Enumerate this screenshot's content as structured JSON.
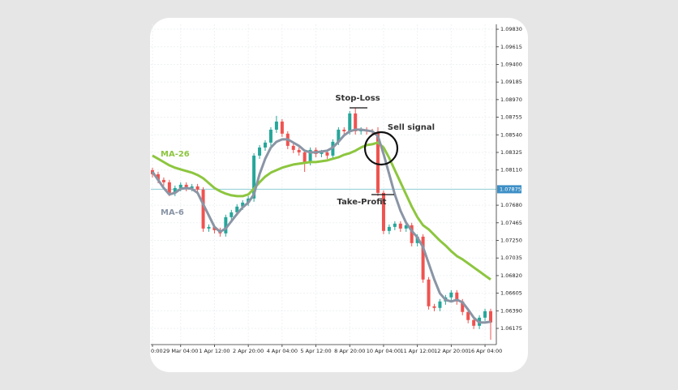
{
  "chart_data": {
    "type": "candlestick",
    "categories": [
      "0:00",
      null,
      null,
      null,
      null,
      "29 Mar 04:00",
      null,
      null,
      null,
      null,
      null,
      "1 Apr 12:00",
      null,
      null,
      null,
      null,
      null,
      "2 Apr 20:00",
      null,
      null,
      null,
      null,
      null,
      "4 Apr 04:00",
      null,
      null,
      null,
      null,
      null,
      "5 Apr 12:00",
      null,
      null,
      null,
      null,
      null,
      "8 Apr 20:00",
      null,
      null,
      null,
      null,
      null,
      "10 Apr 04:00",
      null,
      null,
      null,
      null,
      null,
      "11 Apr 12:00",
      null,
      null,
      null,
      null,
      null,
      "12 Apr 20:00",
      null,
      null,
      null,
      null,
      null,
      "16 Apr 04:00",
      null
    ],
    "open": [
      1.08108,
      1.08059,
      1.07989,
      1.0796,
      1.07831,
      1.0789,
      1.0793,
      1.0789,
      1.0791,
      1.0787,
      1.07395,
      1.07415,
      1.07375,
      1.07336,
      1.07534,
      1.07593,
      1.07663,
      1.07712,
      1.07762,
      1.08286,
      1.08385,
      1.08445,
      1.08603,
      1.08702,
      1.08554,
      1.08405,
      1.08356,
      1.08326,
      1.08207,
      1.08356,
      1.08306,
      1.08326,
      1.08286,
      1.08455,
      1.08603,
      1.08583,
      1.08801,
      1.08583,
      1.08603,
      1.08583,
      1.08573,
      1.07831,
      1.07366,
      1.07415,
      1.07455,
      1.07395,
      1.07435,
      1.07217,
      1.07296,
      1.06772,
      1.06445,
      1.06425,
      1.06504,
      1.06554,
      1.06613,
      1.06504,
      1.06376,
      1.06277,
      1.06207,
      1.06306,
      1.06385
    ],
    "high": [
      1.08138,
      1.08089,
      1.08019,
      1.0799,
      1.0792,
      1.0796,
      1.0796,
      1.0794,
      1.0794,
      1.079,
      1.07445,
      1.07445,
      1.07405,
      1.07564,
      1.07623,
      1.07693,
      1.07742,
      1.07792,
      1.08316,
      1.08415,
      1.08475,
      1.08633,
      1.08772,
      1.08732,
      1.08584,
      1.08435,
      1.08386,
      1.08356,
      1.08386,
      1.08386,
      1.08356,
      1.08356,
      1.08485,
      1.08633,
      1.08633,
      1.08831,
      1.0887,
      1.08633,
      1.08633,
      1.08613,
      1.08633,
      1.07861,
      1.07445,
      1.07485,
      1.07485,
      1.07465,
      1.07465,
      1.07326,
      1.07326,
      1.06802,
      1.06475,
      1.06534,
      1.06584,
      1.06643,
      1.06643,
      1.06534,
      1.06406,
      1.06307,
      1.06336,
      1.06415,
      1.06415
    ],
    "low": [
      1.08019,
      1.07949,
      1.0792,
      1.07791,
      1.07791,
      1.0785,
      1.0785,
      1.0785,
      1.0783,
      1.07355,
      1.07355,
      1.07335,
      1.07296,
      1.07296,
      1.07494,
      1.07553,
      1.07623,
      1.07672,
      1.07722,
      1.08246,
      1.08345,
      1.08405,
      1.08563,
      1.08514,
      1.08365,
      1.08316,
      1.08286,
      1.08087,
      1.08167,
      1.08266,
      1.08266,
      1.08246,
      1.08246,
      1.08415,
      1.08543,
      1.08543,
      1.08543,
      1.08543,
      1.08543,
      1.08533,
      1.07791,
      1.07326,
      1.07326,
      1.07375,
      1.07355,
      1.07355,
      1.07177,
      1.07177,
      1.06732,
      1.06405,
      1.06385,
      1.06385,
      1.06464,
      1.06514,
      1.06464,
      1.06336,
      1.06237,
      1.06167,
      1.06167,
      1.06266,
      1.06037
    ],
    "close": [
      1.08059,
      1.07989,
      1.0796,
      1.07831,
      1.0789,
      1.0793,
      1.0789,
      1.0791,
      1.0787,
      1.07395,
      1.07415,
      1.07375,
      1.07336,
      1.07534,
      1.07593,
      1.07663,
      1.07712,
      1.07762,
      1.08286,
      1.08385,
      1.08445,
      1.08603,
      1.08702,
      1.08554,
      1.08405,
      1.08356,
      1.08326,
      1.08207,
      1.08356,
      1.08306,
      1.08326,
      1.08286,
      1.08455,
      1.08603,
      1.08583,
      1.08801,
      1.08583,
      1.08603,
      1.08583,
      1.08573,
      1.07831,
      1.07366,
      1.07415,
      1.07455,
      1.07395,
      1.07435,
      1.07217,
      1.07296,
      1.06772,
      1.06445,
      1.06425,
      1.06504,
      1.06554,
      1.06613,
      1.06504,
      1.06376,
      1.06277,
      1.06207,
      1.06306,
      1.06385,
      1.06247
    ],
    "up_color": "#26a69a",
    "down_color": "#ef5350",
    "series": [
      {
        "name": "MA-26",
        "color": "#8dc63f",
        "values": [
          1.08286,
          1.08247,
          1.08207,
          1.08167,
          1.08138,
          1.08118,
          1.08098,
          1.08078,
          1.08049,
          1.08009,
          1.0795,
          1.0789,
          1.07851,
          1.07821,
          1.07801,
          1.07791,
          1.07791,
          1.07811,
          1.0788,
          1.0796,
          1.08029,
          1.08078,
          1.08108,
          1.08138,
          1.08158,
          1.08177,
          1.08187,
          1.08197,
          1.08207,
          1.08207,
          1.08217,
          1.08227,
          1.08247,
          1.08266,
          1.08296,
          1.08316,
          1.08346,
          1.08385,
          1.08415,
          1.08425,
          1.08445,
          1.08385,
          1.08257,
          1.08108,
          1.0796,
          1.07811,
          1.07663,
          1.07534,
          1.07435,
          1.07385,
          1.07316,
          1.07247,
          1.07187,
          1.07118,
          1.07059,
          1.07019,
          1.0697,
          1.0692,
          1.06871,
          1.06821,
          1.06772
        ]
      },
      {
        "name": "MA-6",
        "color": "#8a95a5",
        "values": [
          1.08088,
          1.07989,
          1.0789,
          1.07811,
          1.07831,
          1.0788,
          1.0789,
          1.0788,
          1.07831,
          1.07692,
          1.07554,
          1.07415,
          1.07356,
          1.07395,
          1.07484,
          1.07573,
          1.07653,
          1.07712,
          1.07811,
          1.08059,
          1.08247,
          1.08385,
          1.08455,
          1.08484,
          1.08484,
          1.08445,
          1.08405,
          1.08346,
          1.08326,
          1.08326,
          1.08336,
          1.08346,
          1.08385,
          1.08455,
          1.08534,
          1.08583,
          1.08603,
          1.08603,
          1.08593,
          1.08583,
          1.08524,
          1.08306,
          1.08059,
          1.07811,
          1.07613,
          1.07465,
          1.07366,
          1.07286,
          1.07168,
          1.0697,
          1.06772,
          1.06603,
          1.06524,
          1.06504,
          1.06524,
          1.06494,
          1.06405,
          1.06306,
          1.06247,
          1.06247,
          1.06257
        ]
      }
    ],
    "current_price": 1.07875,
    "current_price_color": "#3d8fc6",
    "annotations": [
      {
        "text": "Stop-Loss",
        "value": 1.0887
      },
      {
        "text": "Take-Profit",
        "value": 1.0781
      },
      {
        "text": "Sell signal"
      }
    ],
    "ylim": [
      1.05977,
      1.0989
    ],
    "yticks": [
      {
        "value": 1.0983,
        "label": "1.09830"
      },
      1.09615,
      {
        "value": 1.094,
        "label": "1.09400"
      },
      1.09185,
      {
        "value": 1.0897,
        "label": "1.08970"
      },
      1.08755,
      {
        "value": 1.0854,
        "label": "1.08540"
      },
      1.08325,
      {
        "value": 1.0811,
        "label": "1.08110"
      },
      {
        "value": 1.0768,
        "label": "1.07680"
      },
      1.07465,
      {
        "value": 1.0725,
        "label": "1.07250"
      },
      1.07035,
      {
        "value": 1.0682,
        "label": "1.06820"
      },
      1.06605,
      {
        "value": 1.0639,
        "label": "1.06390"
      },
      1.06175
    ],
    "grid": true
  }
}
